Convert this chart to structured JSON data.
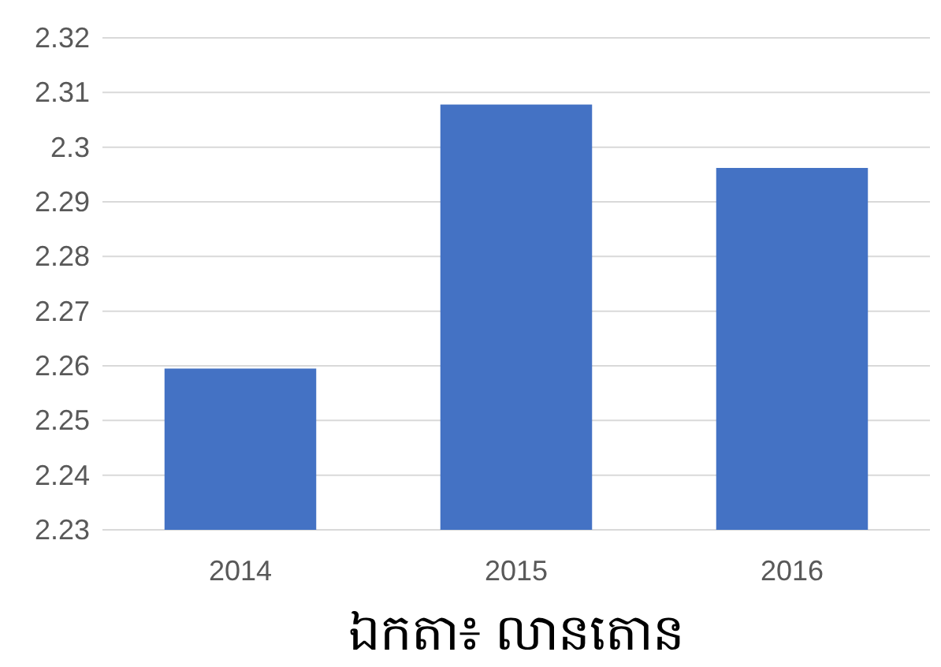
{
  "chart_data": {
    "type": "bar",
    "xlabel": "ឯកតា៖ លានតោន",
    "categories": [
      "2014",
      "2015",
      "2016"
    ],
    "values": [
      2.2595,
      2.3078,
      2.2962
    ],
    "color": "#4472c4",
    "ylim": [
      2.23,
      2.32
    ],
    "yticks": [
      2.23,
      2.24,
      2.25,
      2.26,
      2.27,
      2.28,
      2.29,
      2.3,
      2.31,
      2.32
    ],
    "grid": "y"
  }
}
